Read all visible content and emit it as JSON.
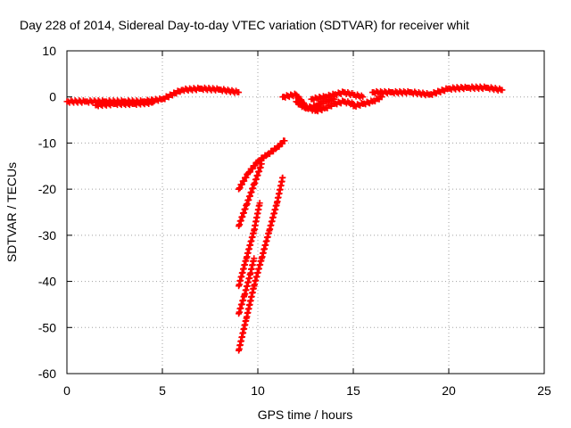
{
  "chart_data": {
    "type": "scatter",
    "title": "Day 228 of 2014, Sidereal Day-to-day VTEC variation (SDTVAR) for receiver whit",
    "xlabel": "GPS time / hours",
    "ylabel": "SDTVAR / TECUs",
    "xlim": [
      0,
      25
    ],
    "ylim": [
      -60,
      10
    ],
    "x_ticks": [
      0,
      5,
      10,
      15,
      20,
      25
    ],
    "y_ticks": [
      10,
      0,
      -10,
      -20,
      -30,
      -40,
      -50,
      -60
    ],
    "grid": true,
    "marker": "plus",
    "color": "#ff0000",
    "segments": [
      {
        "x": [
          0.0,
          1.0,
          2.0,
          3.0,
          4.0,
          5.0,
          6.0,
          7.0,
          8.0,
          9.0
        ],
        "y": [
          -1.0,
          -1.0,
          -1.0,
          -1.0,
          -1.0,
          -0.5,
          1.5,
          1.8,
          1.6,
          1.0
        ]
      },
      {
        "x": [
          1.5,
          2.5,
          3.5,
          4.5
        ],
        "y": [
          -1.8,
          -1.5,
          -1.5,
          -1.2
        ]
      },
      {
        "x": [
          9.0,
          9.5,
          10.0,
          10.5,
          11.0,
          11.4
        ],
        "y": [
          -20.0,
          -16.5,
          -14.0,
          -12.5,
          -11.0,
          -9.5
        ]
      },
      {
        "x": [
          9.0,
          9.4,
          9.8,
          10.2
        ],
        "y": [
          -28.0,
          -23.5,
          -19.0,
          -14.5
        ]
      },
      {
        "x": [
          9.0,
          9.4,
          9.8,
          10.1
        ],
        "y": [
          -41.0,
          -35.0,
          -29.0,
          -23.0
        ]
      },
      {
        "x": [
          9.0,
          9.4,
          9.8,
          10.2,
          10.6,
          11.0,
          11.3
        ],
        "y": [
          -55.0,
          -48.0,
          -41.0,
          -35.0,
          -29.0,
          -23.0,
          -17.5
        ]
      },
      {
        "x": [
          9.0,
          9.3,
          9.6,
          9.8
        ],
        "y": [
          -47.0,
          -43.0,
          -38.5,
          -35.0
        ]
      },
      {
        "x": [
          11.3,
          12.0,
          12.5,
          13.0,
          13.5,
          14.0,
          14.5,
          15.0
        ],
        "y": [
          0.0,
          0.5,
          -2.0,
          -3.0,
          -2.5,
          -1.5,
          -1.0,
          -1.5
        ]
      },
      {
        "x": [
          12.0,
          12.5,
          13.0,
          13.5,
          14.0
        ],
        "y": [
          -1.0,
          -2.5,
          -2.0,
          -1.0,
          -0.5
        ]
      },
      {
        "x": [
          12.8,
          13.5,
          14.0,
          14.5,
          15.0,
          15.5
        ],
        "y": [
          -0.5,
          0.0,
          0.5,
          1.0,
          0.5,
          0.0
        ]
      },
      {
        "x": [
          15.0,
          15.5,
          16.0,
          16.5
        ],
        "y": [
          -2.0,
          -1.5,
          -1.0,
          0.0
        ]
      },
      {
        "x": [
          16.0,
          17.0,
          18.0,
          19.0,
          20.0,
          21.0,
          22.0,
          22.8
        ],
        "y": [
          1.0,
          1.0,
          1.0,
          0.5,
          1.8,
          2.0,
          2.0,
          1.5
        ]
      }
    ]
  }
}
